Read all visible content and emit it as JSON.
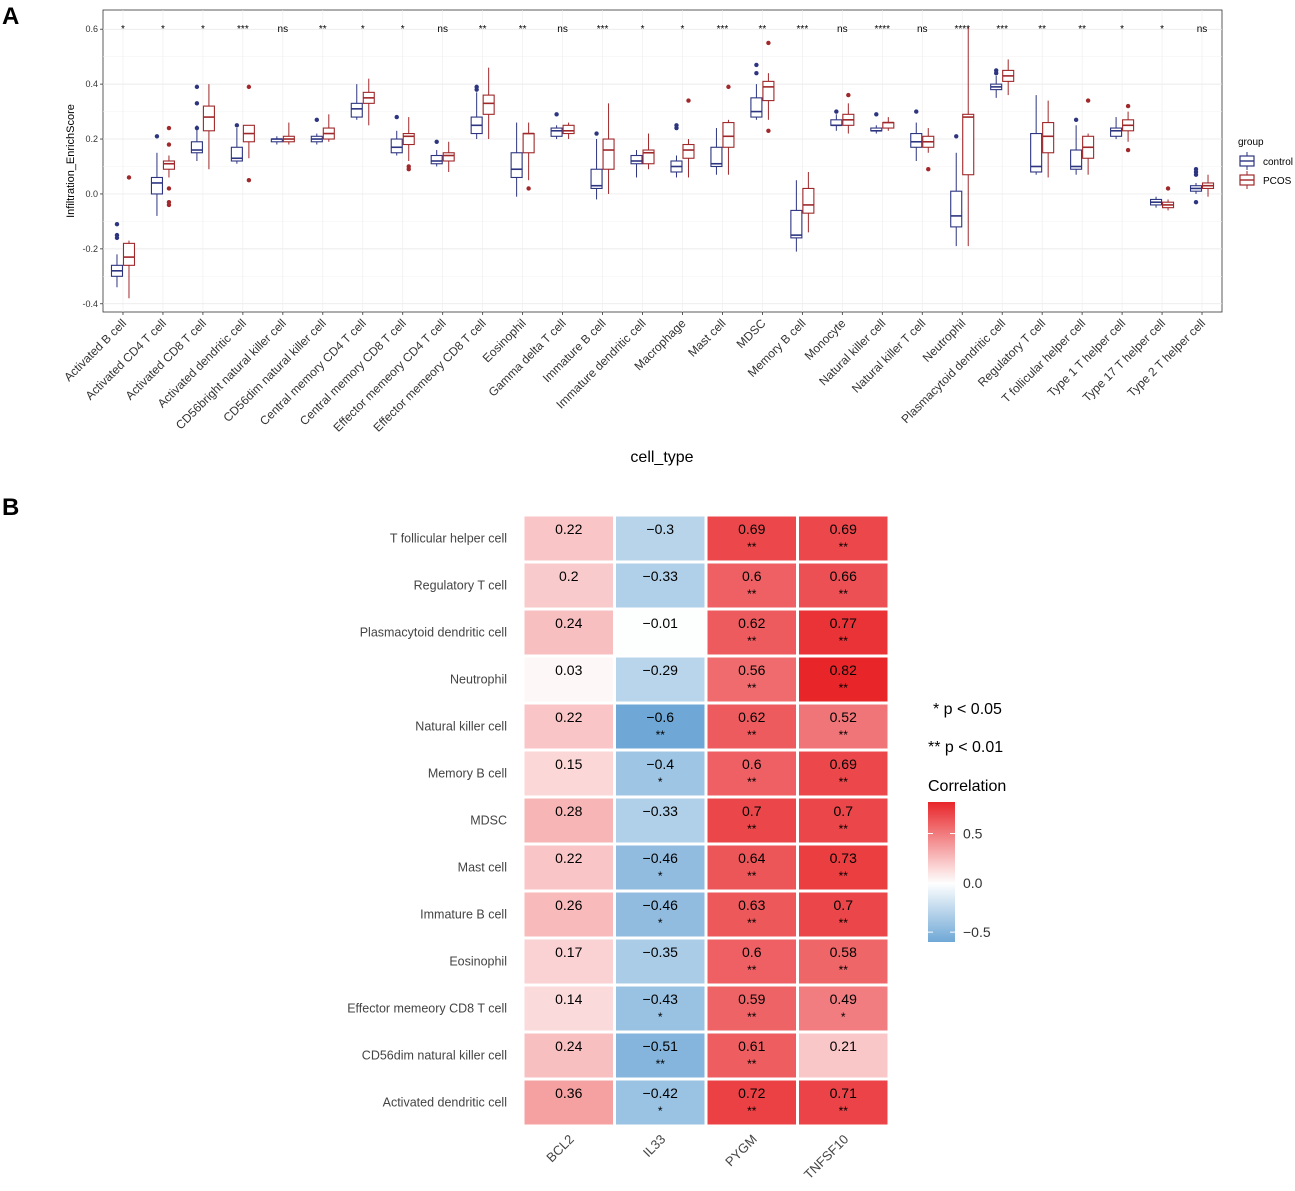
{
  "panels": {
    "a_label": "A",
    "b_label": "B"
  },
  "colors": {
    "control": "#2d3580",
    "pcos": "#a0282a",
    "neg": "#6fa8d6",
    "pos": "#e8262a"
  },
  "chart_data": [
    {
      "type": "boxplot",
      "ylabel": "Infiltration_EnrichScore",
      "xlabel": "cell_type",
      "ylim": [
        -0.43,
        0.67
      ],
      "yticks": [
        -0.4,
        -0.2,
        0.0,
        0.2,
        0.4,
        0.6
      ],
      "ytick_labels": [
        "-0.4",
        "-0.2",
        "0.0",
        "0.2",
        "0.4",
        "0.6"
      ],
      "legend": {
        "title": "group",
        "labels": [
          "control",
          "PCOS"
        ]
      },
      "categories": [
        {
          "name": "Activated B cell",
          "sig": "*",
          "control": {
            "min": -0.34,
            "q1": -0.3,
            "med": -0.28,
            "q3": -0.26,
            "max": -0.22,
            "out": [
              -0.11,
              -0.15,
              -0.16
            ]
          },
          "pcos": {
            "min": -0.38,
            "q1": -0.26,
            "med": -0.23,
            "q3": -0.18,
            "max": -0.17,
            "out": [
              0.06
            ]
          }
        },
        {
          "name": "Activated CD4 T cell",
          "sig": "*",
          "control": {
            "min": -0.08,
            "q1": 0.0,
            "med": 0.04,
            "q3": 0.06,
            "max": 0.15,
            "out": [
              0.21
            ]
          },
          "pcos": {
            "min": 0.06,
            "q1": 0.09,
            "med": 0.11,
            "q3": 0.12,
            "max": 0.14,
            "out": [
              0.24,
              0.18,
              0.02,
              -0.03,
              -0.04
            ]
          }
        },
        {
          "name": "Activated CD8 T cell",
          "sig": "*",
          "control": {
            "min": 0.12,
            "q1": 0.15,
            "med": 0.16,
            "q3": 0.19,
            "max": 0.25,
            "out": [
              0.39,
              0.33,
              0.24
            ]
          },
          "pcos": {
            "min": 0.09,
            "q1": 0.23,
            "med": 0.28,
            "q3": 0.32,
            "max": 0.4,
            "out": []
          }
        },
        {
          "name": "Activated dendritic cell",
          "sig": "***",
          "control": {
            "min": 0.11,
            "q1": 0.12,
            "med": 0.13,
            "q3": 0.17,
            "max": 0.24,
            "out": [
              0.25
            ]
          },
          "pcos": {
            "min": 0.13,
            "q1": 0.19,
            "med": 0.22,
            "q3": 0.25,
            "max": 0.25,
            "out": [
              0.39,
              0.05
            ]
          }
        },
        {
          "name": "CD56bright natural killer cell",
          "sig": "ns",
          "control": {
            "min": 0.18,
            "q1": 0.19,
            "med": 0.2,
            "q3": 0.2,
            "max": 0.21,
            "out": []
          },
          "pcos": {
            "min": 0.18,
            "q1": 0.19,
            "med": 0.2,
            "q3": 0.21,
            "max": 0.26,
            "out": []
          }
        },
        {
          "name": "CD56dim natural killer cell",
          "sig": "**",
          "control": {
            "min": 0.18,
            "q1": 0.19,
            "med": 0.2,
            "q3": 0.21,
            "max": 0.22,
            "out": [
              0.27
            ]
          },
          "pcos": {
            "min": 0.19,
            "q1": 0.2,
            "med": 0.22,
            "q3": 0.24,
            "max": 0.29,
            "out": []
          }
        },
        {
          "name": "Central memory CD4 T cell",
          "sig": "*",
          "control": {
            "min": 0.27,
            "q1": 0.28,
            "med": 0.31,
            "q3": 0.33,
            "max": 0.4,
            "out": []
          },
          "pcos": {
            "min": 0.25,
            "q1": 0.33,
            "med": 0.35,
            "q3": 0.37,
            "max": 0.42,
            "out": []
          }
        },
        {
          "name": "Central memory CD8 T cell",
          "sig": "*",
          "control": {
            "min": 0.14,
            "q1": 0.15,
            "med": 0.17,
            "q3": 0.2,
            "max": 0.23,
            "out": [
              0.28
            ]
          },
          "pcos": {
            "min": 0.12,
            "q1": 0.18,
            "med": 0.21,
            "q3": 0.22,
            "max": 0.28,
            "out": [
              0.1,
              0.09
            ]
          }
        },
        {
          "name": "Effector memeory CD4 T cell",
          "sig": "ns",
          "control": {
            "min": 0.1,
            "q1": 0.11,
            "med": 0.12,
            "q3": 0.14,
            "max": 0.16,
            "out": [
              0.19
            ]
          },
          "pcos": {
            "min": 0.08,
            "q1": 0.12,
            "med": 0.14,
            "q3": 0.15,
            "max": 0.19,
            "out": []
          }
        },
        {
          "name": "Effector memeory CD8 T cell",
          "sig": "**",
          "control": {
            "min": 0.2,
            "q1": 0.22,
            "med": 0.25,
            "q3": 0.28,
            "max": 0.37,
            "out": [
              0.39,
              0.38
            ]
          },
          "pcos": {
            "min": 0.2,
            "q1": 0.29,
            "med": 0.33,
            "q3": 0.36,
            "max": 0.46,
            "out": []
          }
        },
        {
          "name": "Eosinophil",
          "sig": "**",
          "control": {
            "min": -0.01,
            "q1": 0.06,
            "med": 0.09,
            "q3": 0.15,
            "max": 0.26,
            "out": []
          },
          "pcos": {
            "min": 0.05,
            "q1": 0.15,
            "med": 0.22,
            "q3": 0.22,
            "max": 0.26,
            "out": [
              0.02
            ]
          }
        },
        {
          "name": "Gamma delta T cell",
          "sig": "ns",
          "control": {
            "min": 0.2,
            "q1": 0.21,
            "med": 0.23,
            "q3": 0.24,
            "max": 0.25,
            "out": [
              0.29
            ]
          },
          "pcos": {
            "min": 0.2,
            "q1": 0.22,
            "med": 0.23,
            "q3": 0.25,
            "max": 0.26,
            "out": []
          }
        },
        {
          "name": "Immature  B cell",
          "sig": "***",
          "control": {
            "min": -0.02,
            "q1": 0.02,
            "med": 0.03,
            "q3": 0.09,
            "max": 0.2,
            "out": [
              0.22
            ]
          },
          "pcos": {
            "min": 0.0,
            "q1": 0.09,
            "med": 0.16,
            "q3": 0.2,
            "max": 0.33,
            "out": []
          }
        },
        {
          "name": "Immature dendritic cell",
          "sig": "*",
          "control": {
            "min": 0.06,
            "q1": 0.11,
            "med": 0.12,
            "q3": 0.14,
            "max": 0.16,
            "out": []
          },
          "pcos": {
            "min": 0.09,
            "q1": 0.11,
            "med": 0.15,
            "q3": 0.16,
            "max": 0.22,
            "out": []
          }
        },
        {
          "name": "Macrophage",
          "sig": "*",
          "control": {
            "min": 0.06,
            "q1": 0.08,
            "med": 0.1,
            "q3": 0.12,
            "max": 0.14,
            "out": [
              0.24,
              0.25
            ]
          },
          "pcos": {
            "min": 0.06,
            "q1": 0.13,
            "med": 0.16,
            "q3": 0.18,
            "max": 0.2,
            "out": [
              0.34
            ]
          }
        },
        {
          "name": "Mast cell",
          "sig": "***",
          "control": {
            "min": 0.07,
            "q1": 0.1,
            "med": 0.11,
            "q3": 0.17,
            "max": 0.24,
            "out": []
          },
          "pcos": {
            "min": 0.07,
            "q1": 0.17,
            "med": 0.21,
            "q3": 0.26,
            "max": 0.27,
            "out": [
              0.39
            ]
          }
        },
        {
          "name": "MDSC",
          "sig": "**",
          "control": {
            "min": 0.27,
            "q1": 0.28,
            "med": 0.3,
            "q3": 0.35,
            "max": 0.4,
            "out": [
              0.47,
              0.44
            ]
          },
          "pcos": {
            "min": 0.27,
            "q1": 0.34,
            "med": 0.39,
            "q3": 0.41,
            "max": 0.44,
            "out": [
              0.55,
              0.23
            ]
          }
        },
        {
          "name": "Memory B cell",
          "sig": "***",
          "control": {
            "min": -0.21,
            "q1": -0.16,
            "med": -0.15,
            "q3": -0.06,
            "max": 0.05,
            "out": []
          },
          "pcos": {
            "min": -0.14,
            "q1": -0.07,
            "med": -0.04,
            "q3": 0.02,
            "max": 0.08,
            "out": []
          }
        },
        {
          "name": "Monocyte",
          "sig": "ns",
          "control": {
            "min": 0.23,
            "q1": 0.25,
            "med": 0.25,
            "q3": 0.27,
            "max": 0.29,
            "out": [
              0.3
            ]
          },
          "pcos": {
            "min": 0.22,
            "q1": 0.25,
            "med": 0.27,
            "q3": 0.29,
            "max": 0.33,
            "out": [
              0.36
            ]
          }
        },
        {
          "name": "Natural killer cell",
          "sig": "****",
          "control": {
            "min": 0.22,
            "q1": 0.23,
            "med": 0.23,
            "q3": 0.24,
            "max": 0.25,
            "out": [
              0.29
            ]
          },
          "pcos": {
            "min": 0.23,
            "q1": 0.24,
            "med": 0.26,
            "q3": 0.26,
            "max": 0.28,
            "out": []
          }
        },
        {
          "name": "Natural killer T cell",
          "sig": "ns",
          "control": {
            "min": 0.12,
            "q1": 0.17,
            "med": 0.19,
            "q3": 0.22,
            "max": 0.26,
            "out": [
              0.3
            ]
          },
          "pcos": {
            "min": 0.15,
            "q1": 0.17,
            "med": 0.19,
            "q3": 0.21,
            "max": 0.24,
            "out": [
              0.09
            ]
          }
        },
        {
          "name": "Neutrophil",
          "sig": "****",
          "control": {
            "min": -0.19,
            "q1": -0.12,
            "med": -0.08,
            "q3": 0.01,
            "max": 0.15,
            "out": [
              0.21
            ]
          },
          "pcos": {
            "min": -0.19,
            "q1": 0.07,
            "med": 0.28,
            "q3": 0.29,
            "max": 0.61,
            "out": []
          }
        },
        {
          "name": "Plasmacytoid dendritic cell",
          "sig": "***",
          "control": {
            "min": 0.35,
            "q1": 0.38,
            "med": 0.39,
            "q3": 0.4,
            "max": 0.43,
            "out": [
              0.45,
              0.44
            ]
          },
          "pcos": {
            "min": 0.36,
            "q1": 0.41,
            "med": 0.43,
            "q3": 0.45,
            "max": 0.49,
            "out": []
          }
        },
        {
          "name": "Regulatory T cell",
          "sig": "**",
          "control": {
            "min": 0.07,
            "q1": 0.08,
            "med": 0.1,
            "q3": 0.22,
            "max": 0.36,
            "out": []
          },
          "pcos": {
            "min": 0.06,
            "q1": 0.15,
            "med": 0.21,
            "q3": 0.26,
            "max": 0.34,
            "out": []
          }
        },
        {
          "name": "T follicular helper cell",
          "sig": "**",
          "control": {
            "min": 0.07,
            "q1": 0.09,
            "med": 0.1,
            "q3": 0.16,
            "max": 0.25,
            "out": [
              0.27
            ]
          },
          "pcos": {
            "min": 0.07,
            "q1": 0.13,
            "med": 0.17,
            "q3": 0.21,
            "max": 0.22,
            "out": [
              0.34
            ]
          }
        },
        {
          "name": "Type 1 T helper cell",
          "sig": "*",
          "control": {
            "min": 0.2,
            "q1": 0.21,
            "med": 0.23,
            "q3": 0.24,
            "max": 0.28,
            "out": []
          },
          "pcos": {
            "min": 0.19,
            "q1": 0.23,
            "med": 0.25,
            "q3": 0.27,
            "max": 0.3,
            "out": [
              0.32,
              0.16
            ]
          }
        },
        {
          "name": "Type 17 T helper cell",
          "sig": "*",
          "control": {
            "min": -0.05,
            "q1": -0.04,
            "med": -0.03,
            "q3": -0.02,
            "max": -0.01,
            "out": []
          },
          "pcos": {
            "min": -0.06,
            "q1": -0.05,
            "med": -0.04,
            "q3": -0.03,
            "max": -0.02,
            "out": [
              0.02
            ]
          }
        },
        {
          "name": "Type 2 T helper cell",
          "sig": "ns",
          "control": {
            "min": 0.0,
            "q1": 0.01,
            "med": 0.02,
            "q3": 0.03,
            "max": 0.04,
            "out": [
              0.09,
              0.08,
              0.07,
              -0.03
            ]
          },
          "pcos": {
            "min": -0.01,
            "q1": 0.02,
            "med": 0.03,
            "q3": 0.04,
            "max": 0.07,
            "out": []
          }
        }
      ]
    },
    {
      "type": "heatmap",
      "columns": [
        "BCL2",
        "IL33",
        "PYGM",
        "TNFSF10"
      ],
      "rows": [
        "T follicular helper cell",
        "Regulatory T cell",
        "Plasmacytoid dendritic cell",
        "Neutrophil",
        "Natural killer cell",
        "Memory B cell",
        "MDSC",
        "Mast cell",
        "Immature B cell",
        "Eosinophil",
        "Effector memeory CD8 T cell",
        "CD56dim natural killer cell",
        "Activated dendritic cell"
      ],
      "values": [
        [
          0.22,
          -0.3,
          0.69,
          0.69
        ],
        [
          0.2,
          -0.33,
          0.6,
          0.66
        ],
        [
          0.24,
          -0.01,
          0.62,
          0.77
        ],
        [
          0.03,
          -0.29,
          0.56,
          0.82
        ],
        [
          0.22,
          -0.6,
          0.62,
          0.52
        ],
        [
          0.15,
          -0.4,
          0.6,
          0.69
        ],
        [
          0.28,
          -0.33,
          0.7,
          0.7
        ],
        [
          0.22,
          -0.46,
          0.64,
          0.73
        ],
        [
          0.26,
          -0.46,
          0.63,
          0.7
        ],
        [
          0.17,
          -0.35,
          0.6,
          0.58
        ],
        [
          0.14,
          -0.43,
          0.59,
          0.49
        ],
        [
          0.24,
          -0.51,
          0.61,
          0.21
        ],
        [
          0.36,
          -0.42,
          0.72,
          0.71
        ]
      ],
      "labels": [
        [
          "0.22",
          "−0.3",
          "0.69",
          "0.69"
        ],
        [
          "0.2",
          "−0.33",
          "0.6",
          "0.66"
        ],
        [
          "0.24",
          "−0.01",
          "0.62",
          "0.77"
        ],
        [
          "0.03",
          "−0.29",
          "0.56",
          "0.82"
        ],
        [
          "0.22",
          "−0.6",
          "0.62",
          "0.52"
        ],
        [
          "0.15",
          "−0.4",
          "0.6",
          "0.69"
        ],
        [
          "0.28",
          "−0.33",
          "0.7",
          "0.7"
        ],
        [
          "0.22",
          "−0.46",
          "0.64",
          "0.73"
        ],
        [
          "0.26",
          "−0.46",
          "0.63",
          "0.7"
        ],
        [
          "0.17",
          "−0.35",
          "0.6",
          "0.58"
        ],
        [
          "0.14",
          "−0.43",
          "0.59",
          "0.49"
        ],
        [
          "0.24",
          "−0.51",
          "0.61",
          "0.21"
        ],
        [
          "0.36",
          "−0.42",
          "0.72",
          "0.71"
        ]
      ],
      "stars": [
        [
          "",
          "",
          "**",
          "**"
        ],
        [
          "",
          "",
          "**",
          "**"
        ],
        [
          "",
          "",
          "**",
          "**"
        ],
        [
          "",
          "",
          "**",
          "**"
        ],
        [
          "",
          "**",
          "**",
          "**"
        ],
        [
          "",
          "*",
          "**",
          "**"
        ],
        [
          "",
          "",
          "**",
          "**"
        ],
        [
          "",
          "*",
          "**",
          "**"
        ],
        [
          "",
          "*",
          "**",
          "**"
        ],
        [
          "",
          "",
          "**",
          "**"
        ],
        [
          "",
          "*",
          "**",
          "*"
        ],
        [
          "",
          "**",
          "**",
          ""
        ],
        [
          "",
          "*",
          "**",
          "**"
        ]
      ],
      "notes": [
        "* p < 0.05",
        "** p < 0.01"
      ],
      "colorbar": {
        "title": "Correlation",
        "range": [
          -0.6,
          0.82
        ],
        "ticks": [
          0.5,
          0.0,
          -0.5
        ],
        "tick_labels": [
          "0.5",
          "0.0",
          "−0.5"
        ]
      }
    }
  ]
}
